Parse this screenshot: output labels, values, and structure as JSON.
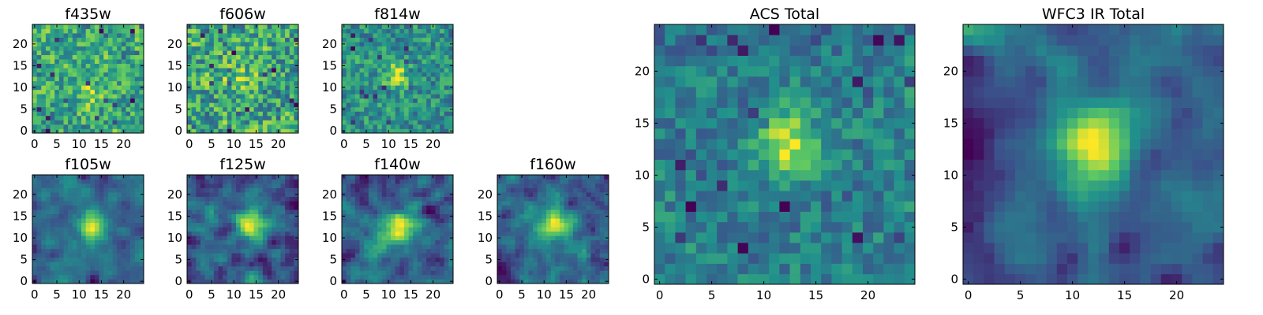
{
  "chart_data": [
    {
      "type": "heatmap",
      "title": "f435w",
      "size": 25,
      "noise": 0.4,
      "peak": 0.35,
      "blur": 0,
      "center": [
        12,
        9
      ],
      "sigma": 2.2,
      "low_freq": 0.3,
      "seed": 11,
      "xticks": [
        "0",
        "5",
        "10",
        "15",
        "20"
      ],
      "yticks": [
        "0",
        "5",
        "10",
        "15",
        "20"
      ],
      "xlim": [
        -0.5,
        24.5
      ],
      "ylim": [
        -0.5,
        24.5
      ]
    },
    {
      "type": "heatmap",
      "title": "f606w",
      "size": 25,
      "noise": 0.42,
      "peak": 0.25,
      "blur": 0,
      "center": [
        12,
        12
      ],
      "sigma": 2.2,
      "low_freq": 0.25,
      "seed": 23,
      "xticks": [
        "0",
        "5",
        "10",
        "15",
        "20"
      ],
      "yticks": [
        "0",
        "5",
        "10",
        "15",
        "20"
      ],
      "xlim": [
        -0.5,
        24.5
      ],
      "ylim": [
        -0.5,
        24.5
      ]
    },
    {
      "type": "heatmap",
      "title": "f814w",
      "size": 25,
      "noise": 0.36,
      "peak": 0.75,
      "blur": 0,
      "center": [
        12,
        13
      ],
      "sigma": 2.0,
      "low_freq": 0.2,
      "seed": 37,
      "xticks": [
        "0",
        "5",
        "10",
        "15",
        "20"
      ],
      "yticks": [
        "0",
        "5",
        "10",
        "15",
        "20"
      ],
      "xlim": [
        -0.5,
        24.5
      ],
      "ylim": [
        -0.5,
        24.5
      ]
    },
    {
      "type": "heatmap",
      "title": "f105w",
      "size": 25,
      "noise": 0.35,
      "peak": 0.85,
      "blur": 1,
      "center": [
        13,
        13
      ],
      "sigma": 2.2,
      "low_freq": 0.35,
      "seed": 41,
      "xticks": [
        "0",
        "5",
        "10",
        "15",
        "20"
      ],
      "yticks": [
        "0",
        "5",
        "10",
        "15",
        "20"
      ],
      "xlim": [
        -0.5,
        24.5
      ],
      "ylim": [
        -0.5,
        24.5
      ]
    },
    {
      "type": "heatmap",
      "title": "f125w",
      "size": 25,
      "noise": 0.35,
      "peak": 0.75,
      "blur": 1,
      "center": [
        13,
        13
      ],
      "sigma": 2.2,
      "low_freq": 0.35,
      "seed": 53,
      "xticks": [
        "0",
        "5",
        "10",
        "15",
        "20"
      ],
      "yticks": [
        "0",
        "5",
        "10",
        "15",
        "20"
      ],
      "xlim": [
        -0.5,
        24.5
      ],
      "ylim": [
        -0.5,
        24.5
      ]
    },
    {
      "type": "heatmap",
      "title": "f140w",
      "size": 25,
      "noise": 0.4,
      "peak": 0.7,
      "blur": 1,
      "center": [
        12,
        12
      ],
      "sigma": 2.5,
      "low_freq": 0.45,
      "seed": 67,
      "xticks": [
        "0",
        "5",
        "10",
        "15",
        "20"
      ],
      "yticks": [
        "0",
        "5",
        "10",
        "15",
        "20"
      ],
      "xlim": [
        -0.5,
        24.5
      ],
      "ylim": [
        -0.5,
        24.5
      ]
    },
    {
      "type": "heatmap",
      "title": "f160w",
      "size": 25,
      "noise": 0.33,
      "peak": 0.8,
      "blur": 1,
      "center": [
        13,
        13
      ],
      "sigma": 2.0,
      "low_freq": 0.25,
      "seed": 79,
      "xticks": [
        "0",
        "5",
        "10",
        "15",
        "20"
      ],
      "yticks": [
        "0",
        "5",
        "10",
        "15",
        "20"
      ],
      "xlim": [
        -0.5,
        24.5
      ],
      "ylim": [
        -0.5,
        24.5
      ]
    },
    {
      "type": "heatmap",
      "title": "ACS Total",
      "size": 25,
      "noise": 0.3,
      "peak": 0.9,
      "blur": 0,
      "center": [
        12,
        13
      ],
      "sigma": 2.2,
      "low_freq": 0.25,
      "seed": 83,
      "xticks": [
        "0",
        "5",
        "10",
        "15",
        "20"
      ],
      "yticks": [
        "0",
        "5",
        "10",
        "15",
        "20"
      ],
      "xlim": [
        -0.5,
        24.5
      ],
      "ylim": [
        -0.5,
        24.5
      ]
    },
    {
      "type": "heatmap",
      "title": "WFC3 IR Total",
      "size": 25,
      "noise": 0.22,
      "peak": 1.0,
      "blur": 1,
      "center": [
        12,
        13
      ],
      "sigma": 2.4,
      "low_freq": 0.3,
      "seed": 97,
      "xticks": [
        "0",
        "5",
        "10",
        "15",
        "20"
      ],
      "yticks": [
        "0",
        "5",
        "10",
        "15",
        "20"
      ],
      "xlim": [
        -0.5,
        24.5
      ],
      "ylim": [
        -0.5,
        24.5
      ],
      "bright_corner": "top-left"
    }
  ],
  "colormap": [
    "#440154",
    "#3b528b",
    "#21918c",
    "#5ec962",
    "#fde725"
  ]
}
